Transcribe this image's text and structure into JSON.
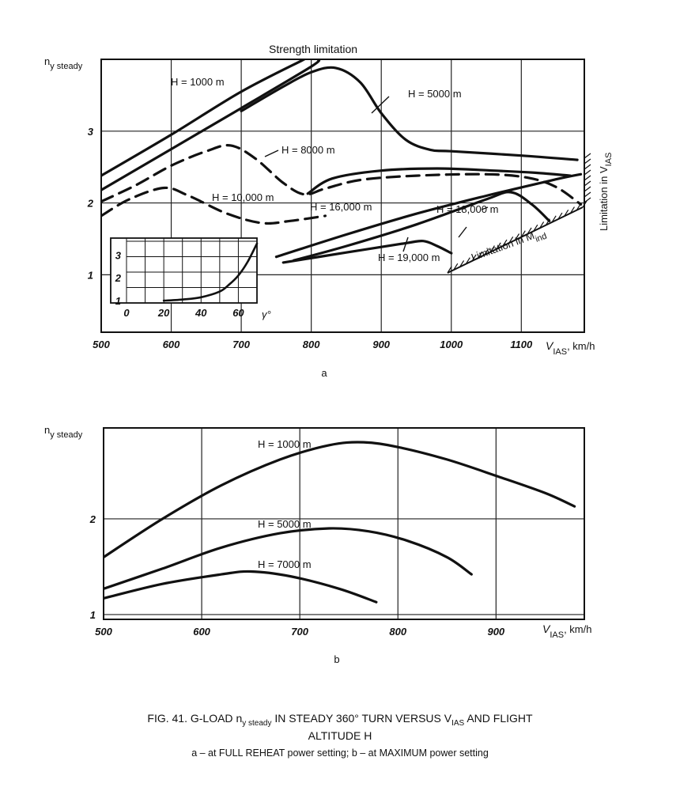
{
  "figure": {
    "caption_line1_pre": "FIG. 41. G-LOAD ",
    "caption_n": "n",
    "caption_sub": "y steady",
    "caption_line1_mid": " IN STEADY 360° TURN VERSUS V",
    "caption_sub_ias": "IAS",
    "caption_line1_post": " AND FLIGHT",
    "caption_line2": "ALTITUDE H",
    "caption_line3": "a – at FULL REHEAT power setting; b – at MAXIMUM power setting"
  },
  "chart_data": [
    {
      "panel": "a",
      "type": "line",
      "xlabel": "V_IAS, km/h",
      "ylabel": "n_y steady",
      "xlim": [
        500,
        1190
      ],
      "ylim": [
        0.2,
        4.0
      ],
      "x_ticks": [
        "500",
        "600",
        "700",
        "800",
        "900",
        "1000",
        "1100"
      ],
      "y_ticks": [
        "1",
        "2",
        "3"
      ],
      "grid": true,
      "annotations": {
        "top": "Strength limitation",
        "right": "Limitation in V_IAS",
        "bottom": "Limitation in M_ind"
      },
      "series": [
        {
          "name": "H = 1000 m",
          "style": "solid",
          "points": [
            [
              500,
              2.38
            ],
            [
              600,
              2.95
            ],
            [
              700,
              3.55
            ],
            [
              790,
              4.0
            ]
          ]
        },
        {
          "name": "",
          "style": "solid",
          "points": [
            [
              500,
              2.18
            ],
            [
              600,
              2.75
            ],
            [
              700,
              3.32
            ],
            [
              800,
              3.9
            ],
            [
              810,
              4.0
            ]
          ]
        },
        {
          "name": "H = 5000 m",
          "style": "solid",
          "points": [
            [
              700,
              3.28
            ],
            [
              760,
              3.62
            ],
            [
              800,
              3.82
            ],
            [
              835,
              3.88
            ],
            [
              870,
              3.68
            ],
            [
              900,
              3.25
            ],
            [
              935,
              2.88
            ],
            [
              970,
              2.74
            ],
            [
              1000,
              2.72
            ],
            [
              1100,
              2.66
            ],
            [
              1180,
              2.6
            ]
          ]
        },
        {
          "name": "H = 8000 m",
          "style": "dashed",
          "points": [
            [
              500,
              2.02
            ],
            [
              550,
              2.25
            ],
            [
              600,
              2.52
            ],
            [
              650,
              2.72
            ],
            [
              685,
              2.8
            ],
            [
              720,
              2.62
            ],
            [
              760,
              2.28
            ],
            [
              790,
              2.12
            ],
            [
              820,
              2.2
            ],
            [
              870,
              2.32
            ],
            [
              950,
              2.38
            ],
            [
              1050,
              2.4
            ],
            [
              1110,
              2.35
            ],
            [
              1150,
              2.22
            ],
            [
              1185,
              1.98
            ]
          ]
        },
        {
          "name": "",
          "style": "solid",
          "points": [
            [
              795,
              2.13
            ],
            [
              830,
              2.34
            ],
            [
              900,
              2.45
            ],
            [
              980,
              2.48
            ],
            [
              1060,
              2.45
            ],
            [
              1120,
              2.42
            ],
            [
              1170,
              2.38
            ]
          ]
        },
        {
          "name": "H = 10,000 m",
          "style": "dashed",
          "points": [
            [
              500,
              1.82
            ],
            [
              540,
              2.05
            ],
            [
              590,
              2.21
            ],
            [
              625,
              2.1
            ],
            [
              680,
              1.85
            ],
            [
              730,
              1.72
            ],
            [
              770,
              1.75
            ],
            [
              820,
              1.82
            ]
          ]
        },
        {
          "name": "H = 16,000 m",
          "style": "solid",
          "points": [
            [
              750,
              1.25
            ],
            [
              850,
              1.56
            ],
            [
              950,
              1.85
            ],
            [
              1050,
              2.1
            ],
            [
              1150,
              2.33
            ],
            [
              1185,
              2.4
            ]
          ]
        },
        {
          "name": "H = 18,000 m",
          "style": "solid",
          "points": [
            [
              775,
              1.2
            ],
            [
              850,
              1.4
            ],
            [
              950,
              1.7
            ],
            [
              1050,
              2.05
            ],
            [
              1085,
              2.15
            ],
            [
              1115,
              1.98
            ],
            [
              1140,
              1.75
            ]
          ]
        },
        {
          "name": "H = 19,000 m",
          "style": "solid",
          "points": [
            [
              760,
              1.17
            ],
            [
              850,
              1.31
            ],
            [
              935,
              1.44
            ],
            [
              960,
              1.47
            ],
            [
              980,
              1.4
            ],
            [
              1000,
              1.3
            ]
          ]
        }
      ],
      "inset": {
        "xlabel": "γ°",
        "x_ticks": [
          "0",
          "20",
          "40",
          "60"
        ],
        "y_ticks": [
          "1",
          "2",
          "3"
        ],
        "curve_points": [
          [
            20,
            1.0
          ],
          [
            30,
            1.05
          ],
          [
            40,
            1.15
          ],
          [
            50,
            1.4
          ],
          [
            55,
            1.7
          ],
          [
            60,
            2.1
          ],
          [
            65,
            2.7
          ],
          [
            70,
            3.5
          ]
        ]
      }
    },
    {
      "panel": "b",
      "type": "line",
      "xlabel": "V_IAS, km/h",
      "ylabel": "n_y steady",
      "xlim": [
        500,
        990
      ],
      "ylim": [
        0.95,
        2.95
      ],
      "x_ticks": [
        "500",
        "600",
        "700",
        "800",
        "900"
      ],
      "y_ticks": [
        "1",
        "2"
      ],
      "grid": true,
      "series": [
        {
          "name": "H = 1000 m",
          "style": "solid",
          "points": [
            [
              500,
              1.6
            ],
            [
              560,
              2.0
            ],
            [
              620,
              2.35
            ],
            [
              680,
              2.62
            ],
            [
              730,
              2.77
            ],
            [
              765,
              2.8
            ],
            [
              800,
              2.75
            ],
            [
              850,
              2.62
            ],
            [
              900,
              2.45
            ],
            [
              950,
              2.27
            ],
            [
              980,
              2.13
            ]
          ]
        },
        {
          "name": "H = 5000 m",
          "style": "solid",
          "points": [
            [
              500,
              1.27
            ],
            [
              560,
              1.48
            ],
            [
              620,
              1.7
            ],
            [
              680,
              1.85
            ],
            [
              730,
              1.9
            ],
            [
              770,
              1.87
            ],
            [
              810,
              1.77
            ],
            [
              850,
              1.6
            ],
            [
              875,
              1.42
            ]
          ]
        },
        {
          "name": "H = 7000 m",
          "style": "solid",
          "points": [
            [
              500,
              1.17
            ],
            [
              560,
              1.32
            ],
            [
              620,
              1.42
            ],
            [
              650,
              1.45
            ],
            [
              690,
              1.4
            ],
            [
              740,
              1.27
            ],
            [
              778,
              1.13
            ]
          ]
        }
      ]
    }
  ],
  "text": {
    "a_ylabel_n": "n",
    "a_ylabel_sub": "y steady",
    "a_xlabel_v": "V",
    "a_xlabel_sub": "IAS",
    "a_xlabel_unit": ", km/h",
    "a_strength": "Strength limitation",
    "a_lim_vias": "Limitation in V",
    "a_lim_vias_sub": "IAS",
    "a_lim_mind": "Limitation in M",
    "a_lim_mind_sub": "ind",
    "a_h1000": "H = 1000 m",
    "a_h5000": "H = 5000 m",
    "a_h8000": "H = 8000 m",
    "a_h10000": "H = 10,000 m",
    "a_h16000": "H = 16,000 m",
    "a_h18000": "H = 18,000 m",
    "a_h19000": "H = 19,000 m",
    "a_inset_gamma": "γ°",
    "panel_a": "a",
    "b_ylabel_n": "n",
    "b_ylabel_sub": "y steady",
    "b_xlabel_v": "V",
    "b_xlabel_sub": "IAS",
    "b_xlabel_unit": ", km/h",
    "b_h1000": "H = 1000 m",
    "b_h5000": "H = 5000 m",
    "b_h7000": "H = 7000 m",
    "panel_b": "b"
  }
}
